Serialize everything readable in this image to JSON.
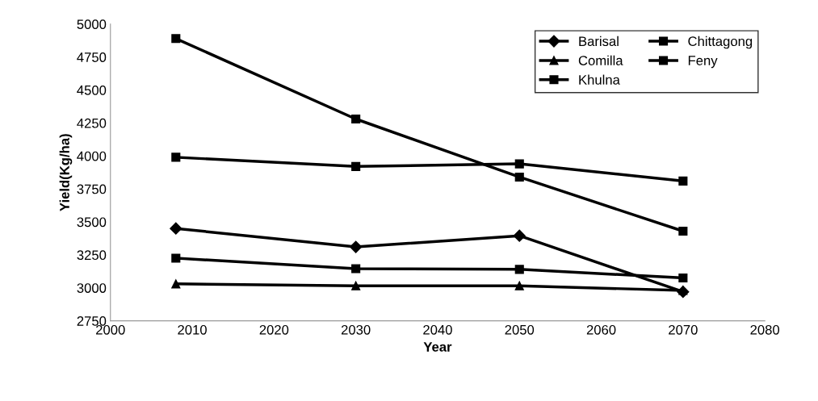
{
  "chart_data": {
    "type": "line",
    "xlabel": "Year",
    "ylabel": "Yield(Kg/ha)",
    "x": [
      2008,
      2030,
      2050,
      2070
    ],
    "series": [
      {
        "name": "Barisal",
        "color": "#000000",
        "marker": "diamond",
        "values": [
          3450,
          3310,
          3395,
          2970
        ]
      },
      {
        "name": "Chittagong",
        "color": "#000000",
        "marker": "square",
        "values": [
          3990,
          3920,
          3940,
          3810
        ]
      },
      {
        "name": "Comilla",
        "color": "#000000",
        "marker": "triangle",
        "values": [
          3030,
          3015,
          3015,
          2980
        ]
      },
      {
        "name": "Feny",
        "color": "#000000",
        "marker": "square",
        "values": [
          3225,
          3145,
          3140,
          3075
        ]
      },
      {
        "name": "Khulna",
        "color": "#000000",
        "marker": "square",
        "values": [
          4890,
          4280,
          3840,
          3430
        ]
      }
    ],
    "xlim": [
      2000,
      2080
    ],
    "xticks": [
      2000,
      2010,
      2020,
      2030,
      2040,
      2050,
      2060,
      2070,
      2080
    ],
    "ylim": [
      2750,
      5000
    ],
    "yticks": [
      2750,
      3000,
      3250,
      3500,
      3750,
      4000,
      4250,
      4500,
      4750,
      5000
    ],
    "grid": false,
    "legend": "top right",
    "line_style": "solid"
  }
}
